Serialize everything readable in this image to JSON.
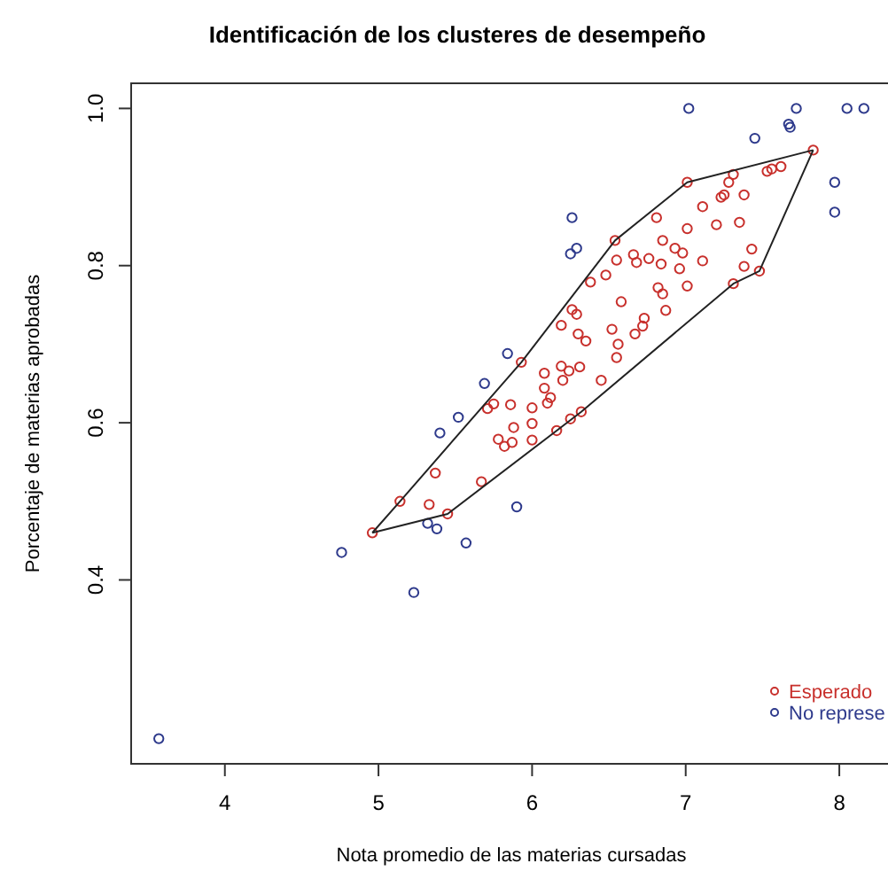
{
  "chart_data": {
    "type": "scatter",
    "title": "Identificación de los clusteres de desempeño",
    "xlabel": "Nota promedio de las materias cursadas",
    "ylabel": "Porcentaje de materias aprobadas",
    "xlim": [
      3.39,
      8.34
    ],
    "ylim": [
      0.166,
      1.032
    ],
    "xticks": [
      4,
      5,
      6,
      7,
      8
    ],
    "yticks": [
      {
        "value": 0.4,
        "label": "0.4"
      },
      {
        "value": 0.6,
        "label": "0.6"
      },
      {
        "value": 0.8,
        "label": "0.8"
      },
      {
        "value": 1.0,
        "label": "1.0"
      }
    ],
    "grid": false,
    "legend": "bottom right",
    "marker": "circle",
    "series": [
      {
        "name": "Esperado",
        "color": "#c8302c",
        "x": [
          7.83,
          7.62,
          7.56,
          7.53,
          7.31,
          7.28,
          7.01,
          7.38,
          7.25,
          7.23,
          7.11,
          7.2,
          7.35,
          6.81,
          7.01,
          6.85,
          6.54,
          6.93,
          6.98,
          6.66,
          6.76,
          6.84,
          6.55,
          6.68,
          7.11,
          7.43,
          7.38,
          7.48,
          6.96,
          7.01,
          7.31,
          6.48,
          6.38,
          6.82,
          6.85,
          6.58,
          6.87,
          6.26,
          6.29,
          6.73,
          6.72,
          6.19,
          6.67,
          6.3,
          6.35,
          6.52,
          6.56,
          6.55,
          5.93,
          6.19,
          6.24,
          6.31,
          6.08,
          6.2,
          6.45,
          6.08,
          6.12,
          6.1,
          6.32,
          6.25,
          6.0,
          5.86,
          5.75,
          5.71,
          6.0,
          5.88,
          6.16,
          5.78,
          5.87,
          6.0,
          5.82,
          5.37,
          5.14,
          5.33,
          5.67,
          5.45,
          4.96
        ],
        "values": [
          0.947,
          0.926,
          0.923,
          0.92,
          0.916,
          0.906,
          0.906,
          0.89,
          0.89,
          0.887,
          0.875,
          0.852,
          0.855,
          0.861,
          0.847,
          0.832,
          0.832,
          0.822,
          0.816,
          0.814,
          0.809,
          0.802,
          0.807,
          0.804,
          0.806,
          0.821,
          0.799,
          0.793,
          0.796,
          0.774,
          0.777,
          0.788,
          0.779,
          0.772,
          0.764,
          0.754,
          0.743,
          0.744,
          0.738,
          0.733,
          0.723,
          0.724,
          0.713,
          0.713,
          0.704,
          0.719,
          0.7,
          0.683,
          0.677,
          0.672,
          0.666,
          0.671,
          0.663,
          0.654,
          0.654,
          0.644,
          0.632,
          0.625,
          0.614,
          0.605,
          0.619,
          0.623,
          0.624,
          0.618,
          0.599,
          0.594,
          0.59,
          0.579,
          0.575,
          0.578,
          0.57,
          0.536,
          0.5,
          0.496,
          0.525,
          0.484,
          0.46
        ]
      },
      {
        "name": "No represe",
        "color": "#2e3a8c",
        "x": [
          7.02,
          7.72,
          8.05,
          8.16,
          7.67,
          7.68,
          7.45,
          7.97,
          7.97,
          6.26,
          6.29,
          6.25,
          5.84,
          5.69,
          5.52,
          5.4,
          5.9,
          5.32,
          5.38,
          5.57,
          4.76,
          5.23,
          3.57
        ],
        "values": [
          1.0,
          1.0,
          1.0,
          1.0,
          0.98,
          0.976,
          0.962,
          0.906,
          0.868,
          0.861,
          0.822,
          0.815,
          0.688,
          0.65,
          0.607,
          0.587,
          0.493,
          0.472,
          0.465,
          0.447,
          0.435,
          0.384,
          0.198
        ]
      },
      {
        "type": "line",
        "color": "#222222",
        "marker": "none",
        "x": [
          4.96,
          5.14,
          5.93,
          6.54,
          7.01,
          7.83
        ],
        "values": [
          0.46,
          0.5,
          0.677,
          0.832,
          0.906,
          0.947
        ]
      },
      {
        "type": "line",
        "color": "#222222",
        "marker": "none",
        "x": [
          4.96,
          5.45,
          6.16,
          6.32,
          7.31,
          7.48,
          7.83
        ],
        "values": [
          0.46,
          0.484,
          0.59,
          0.614,
          0.777,
          0.793,
          0.947
        ]
      }
    ]
  }
}
